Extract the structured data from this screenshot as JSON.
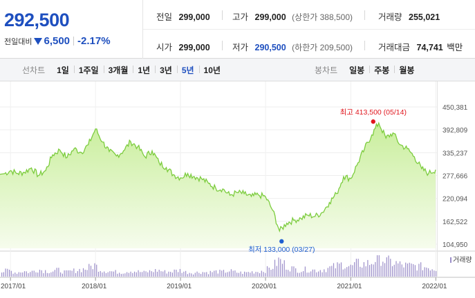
{
  "quote": {
    "price": "292,500",
    "change_label": "전일대비",
    "change_value": "6,500",
    "change_pct": "-2.17%",
    "direction": "down",
    "cells": {
      "prev_label": "전일",
      "prev_value": "299,000",
      "high_label": "고가",
      "high_value": "299,000",
      "high_sub": "(상한가 388,500)",
      "volume_label": "거래량",
      "volume_value": "255,021",
      "open_label": "시가",
      "open_value": "299,000",
      "low_label": "저가",
      "low_value": "290,500",
      "low_sub": "(하한가 209,500)",
      "amount_label": "거래대금",
      "amount_value": "74,741",
      "amount_unit": "백만"
    }
  },
  "tabs": {
    "line_label": "선차트",
    "line_items": [
      "1일",
      "1주일",
      "3개월",
      "1년",
      "3년",
      "5년",
      "10년"
    ],
    "line_active": "5년",
    "candle_label": "봉차트",
    "candle_items": [
      "일봉",
      "주봉",
      "월봉"
    ]
  },
  "chart_data": {
    "type": "area",
    "y_ticks": [
      "450,381",
      "392,809",
      "335,237",
      "277,666",
      "220,094",
      "162,522",
      "104,950"
    ],
    "ylim": [
      104950,
      450381
    ],
    "x_ticks": [
      "2017/01",
      "2018/01",
      "2019/01",
      "2020/01",
      "2021/01",
      "2022/01"
    ],
    "annotation_high": "최고 413,500 (05/14)",
    "annotation_low": "최저 133,000 (03/27)",
    "high_value": 413500,
    "low_value": 133000,
    "volume_label": "거래량",
    "colors": {
      "line": "#7ccc3e",
      "fill_top": "#c9ee9c",
      "fill_bottom": "#f6fced",
      "high": "#e0161e",
      "low": "#1e5fd0",
      "volume": "#9b8ec9"
    },
    "series": [
      {
        "x": "2016/12",
        "y": 281000
      },
      {
        "x": "2017/01",
        "y": 290000
      },
      {
        "x": "2017/02",
        "y": 283000
      },
      {
        "x": "2017/03",
        "y": 286000
      },
      {
        "x": "2017/04",
        "y": 297000
      },
      {
        "x": "2017/05",
        "y": 278000
      },
      {
        "x": "2017/06",
        "y": 290000
      },
      {
        "x": "2017/07",
        "y": 330000
      },
      {
        "x": "2017/08",
        "y": 342000
      },
      {
        "x": "2017/09",
        "y": 323000
      },
      {
        "x": "2017/10",
        "y": 345000
      },
      {
        "x": "2017/11",
        "y": 336000
      },
      {
        "x": "2017/12",
        "y": 355000
      },
      {
        "x": "2018/01",
        "y": 395000
      },
      {
        "x": "2018/02",
        "y": 362000
      },
      {
        "x": "2018/03",
        "y": 338000
      },
      {
        "x": "2018/04",
        "y": 327000
      },
      {
        "x": "2018/05",
        "y": 340000
      },
      {
        "x": "2018/06",
        "y": 363000
      },
      {
        "x": "2018/07",
        "y": 350000
      },
      {
        "x": "2018/08",
        "y": 325000
      },
      {
        "x": "2018/09",
        "y": 340000
      },
      {
        "x": "2018/10",
        "y": 310000
      },
      {
        "x": "2018/11",
        "y": 298000
      },
      {
        "x": "2018/12",
        "y": 280000
      },
      {
        "x": "2019/01",
        "y": 272000
      },
      {
        "x": "2019/02",
        "y": 283000
      },
      {
        "x": "2019/03",
        "y": 275000
      },
      {
        "x": "2019/04",
        "y": 270000
      },
      {
        "x": "2019/05",
        "y": 258000
      },
      {
        "x": "2019/06",
        "y": 246000
      },
      {
        "x": "2019/07",
        "y": 244000
      },
      {
        "x": "2019/08",
        "y": 228000
      },
      {
        "x": "2019/09",
        "y": 235000
      },
      {
        "x": "2019/10",
        "y": 232000
      },
      {
        "x": "2019/11",
        "y": 225000
      },
      {
        "x": "2019/12",
        "y": 229000
      },
      {
        "x": "2020/01",
        "y": 224000
      },
      {
        "x": "2020/02",
        "y": 190000
      },
      {
        "x": "2020/03",
        "y": 138000
      },
      {
        "x": "2020/04",
        "y": 158000
      },
      {
        "x": "2020/05",
        "y": 165000
      },
      {
        "x": "2020/06",
        "y": 170000
      },
      {
        "x": "2020/07",
        "y": 178000
      },
      {
        "x": "2020/08",
        "y": 175000
      },
      {
        "x": "2020/09",
        "y": 185000
      },
      {
        "x": "2020/10",
        "y": 210000
      },
      {
        "x": "2020/11",
        "y": 232000
      },
      {
        "x": "2020/12",
        "y": 275000
      },
      {
        "x": "2021/01",
        "y": 270000
      },
      {
        "x": "2021/02",
        "y": 310000
      },
      {
        "x": "2021/03",
        "y": 345000
      },
      {
        "x": "2021/04",
        "y": 380000
      },
      {
        "x": "2021/05",
        "y": 410000
      },
      {
        "x": "2021/06",
        "y": 372000
      },
      {
        "x": "2021/07",
        "y": 385000
      },
      {
        "x": "2021/08",
        "y": 355000
      },
      {
        "x": "2021/09",
        "y": 345000
      },
      {
        "x": "2021/10",
        "y": 325000
      },
      {
        "x": "2021/11",
        "y": 295000
      },
      {
        "x": "2021/12",
        "y": 283000
      },
      {
        "x": "2022/01",
        "y": 292500
      }
    ],
    "volume_relative": [
      0.22,
      0.3,
      0.18,
      0.26,
      0.2,
      0.35,
      0.28,
      0.24,
      0.31,
      0.2,
      0.27,
      0.33,
      0.38,
      0.55,
      0.3,
      0.26,
      0.22,
      0.2,
      0.28,
      0.24,
      0.2,
      0.26,
      0.3,
      0.22,
      0.25,
      0.3,
      0.2,
      0.18,
      0.22,
      0.2,
      0.24,
      0.22,
      0.27,
      0.2,
      0.18,
      0.22,
      0.24,
      0.3,
      0.44,
      0.78,
      0.5,
      0.36,
      0.3,
      0.34,
      0.3,
      0.32,
      0.4,
      0.48,
      0.6,
      0.45,
      0.62,
      0.58,
      0.66,
      1.0,
      0.7,
      0.66,
      0.55,
      0.5,
      0.5,
      0.46,
      0.44,
      0.34
    ]
  }
}
